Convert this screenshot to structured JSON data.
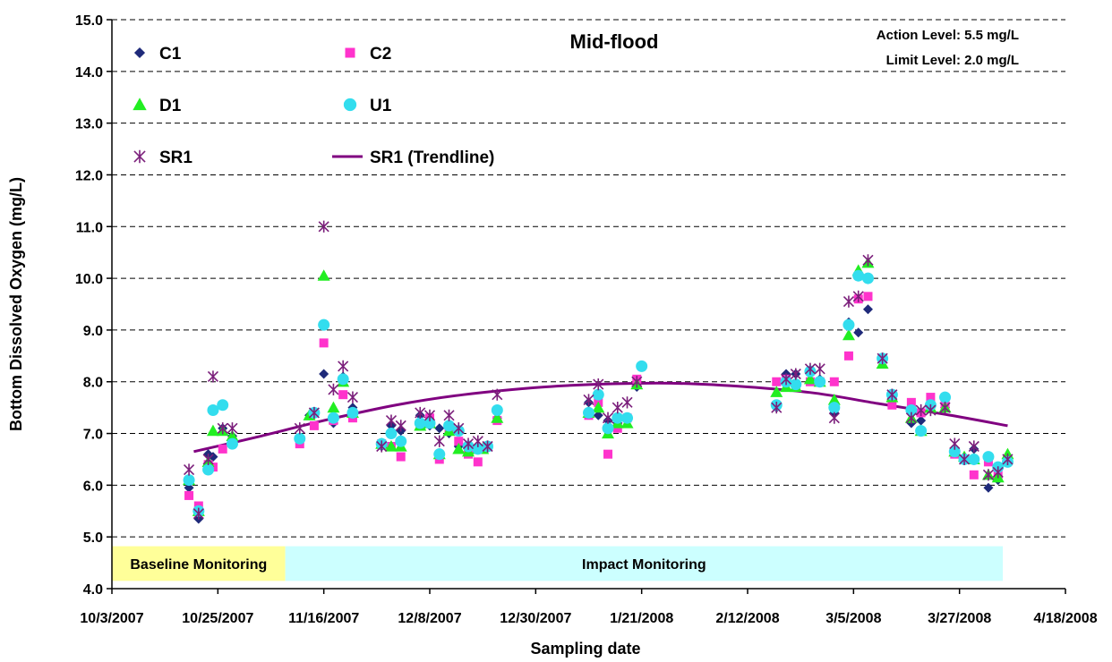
{
  "chart_data": {
    "type": "scatter",
    "title": "Mid-flood",
    "annotations": [
      "Action Level: 5.5 mg/L",
      "Limit Level: 2.0 mg/L"
    ],
    "xlabel": "Sampling date",
    "ylabel": "Bottom Dissolved Oxygen (mg/L)",
    "x_scale": "date",
    "xlim": [
      "2007-10-03",
      "2008-04-18"
    ],
    "ylim": [
      4.0,
      15.0
    ],
    "x_ticks": [
      "10/3/2007",
      "10/25/2007",
      "11/16/2007",
      "12/8/2007",
      "12/30/2007",
      "1/21/2008",
      "2/12/2008",
      "3/5/2008",
      "3/27/2008",
      "4/18/2008"
    ],
    "y_ticks": [
      "4.0",
      "5.0",
      "6.0",
      "7.0",
      "8.0",
      "9.0",
      "10.0",
      "11.0",
      "12.0",
      "13.0",
      "14.0",
      "15.0"
    ],
    "grid": "horizontal dashed",
    "legend": "top-left",
    "periods": [
      {
        "label": "Baseline Monitoring",
        "start": "2007-10-03",
        "end": "2007-11-08",
        "color": "#ffff99"
      },
      {
        "label": "Impact Monitoring",
        "start": "2007-11-08",
        "end": "2008-04-05",
        "color": "#ccffff"
      }
    ],
    "series": [
      {
        "name": "C1",
        "marker": "diamond",
        "color": "#1f2a7a",
        "points": [
          [
            "2007-10-19",
            5.95
          ],
          [
            "2007-10-21",
            5.35
          ],
          [
            "2007-10-23",
            6.6
          ],
          [
            "2007-10-24",
            6.55
          ],
          [
            "2007-10-26",
            7.1
          ],
          [
            "2007-10-28",
            6.95
          ],
          [
            "2007-11-13",
            7.35
          ],
          [
            "2007-11-16",
            8.15
          ],
          [
            "2007-11-18",
            7.2
          ],
          [
            "2007-11-20",
            8.1
          ],
          [
            "2007-11-22",
            7.5
          ],
          [
            "2007-11-28",
            6.75
          ],
          [
            "2007-11-30",
            7.15
          ],
          [
            "2007-12-02",
            7.05
          ],
          [
            "2007-12-06",
            7.35
          ],
          [
            "2007-12-08",
            7.15
          ],
          [
            "2007-12-10",
            7.1
          ],
          [
            "2007-12-12",
            7.0
          ],
          [
            "2007-12-14",
            6.75
          ],
          [
            "2007-12-16",
            6.65
          ],
          [
            "2007-12-19",
            6.7
          ],
          [
            "2007-12-22",
            7.3
          ],
          [
            "2008-01-10",
            7.6
          ],
          [
            "2008-01-12",
            7.35
          ],
          [
            "2008-01-14",
            7.25
          ],
          [
            "2008-01-16",
            7.2
          ],
          [
            "2008-01-18",
            7.25
          ],
          [
            "2008-01-20",
            7.9
          ],
          [
            "2008-02-18",
            7.5
          ],
          [
            "2008-02-20",
            8.15
          ],
          [
            "2008-02-22",
            8.15
          ],
          [
            "2008-02-25",
            8.15
          ],
          [
            "2008-02-27",
            8.05
          ],
          [
            "2008-03-01",
            7.4
          ],
          [
            "2008-03-04",
            9.15
          ],
          [
            "2008-03-06",
            8.95
          ],
          [
            "2008-03-08",
            9.4
          ],
          [
            "2008-03-11",
            8.45
          ],
          [
            "2008-03-13",
            7.7
          ],
          [
            "2008-03-17",
            7.2
          ],
          [
            "2008-03-19",
            7.25
          ],
          [
            "2008-03-21",
            7.5
          ],
          [
            "2008-03-24",
            7.5
          ],
          [
            "2008-03-26",
            6.65
          ],
          [
            "2008-03-28",
            6.55
          ],
          [
            "2008-03-30",
            6.7
          ],
          [
            "2008-04-02",
            5.95
          ],
          [
            "2008-04-04",
            6.1
          ],
          [
            "2008-04-06",
            6.5
          ]
        ]
      },
      {
        "name": "C2",
        "marker": "square",
        "color": "#ff33cc",
        "points": [
          [
            "2007-10-19",
            5.8
          ],
          [
            "2007-10-21",
            5.6
          ],
          [
            "2007-10-23",
            6.4
          ],
          [
            "2007-10-24",
            6.35
          ],
          [
            "2007-10-26",
            6.7
          ],
          [
            "2007-10-28",
            6.85
          ],
          [
            "2007-11-11",
            6.8
          ],
          [
            "2007-11-14",
            7.15
          ],
          [
            "2007-11-16",
            8.75
          ],
          [
            "2007-11-18",
            7.25
          ],
          [
            "2007-11-20",
            7.75
          ],
          [
            "2007-11-22",
            7.3
          ],
          [
            "2007-11-28",
            6.8
          ],
          [
            "2007-11-30",
            6.75
          ],
          [
            "2007-12-02",
            6.55
          ],
          [
            "2007-12-06",
            7.15
          ],
          [
            "2007-12-08",
            7.3
          ],
          [
            "2007-12-10",
            6.5
          ],
          [
            "2007-12-12",
            7.05
          ],
          [
            "2007-12-14",
            6.85
          ],
          [
            "2007-12-16",
            6.6
          ],
          [
            "2007-12-18",
            6.45
          ],
          [
            "2007-12-20",
            6.75
          ],
          [
            "2007-12-22",
            7.25
          ],
          [
            "2008-01-10",
            7.35
          ],
          [
            "2008-01-12",
            7.6
          ],
          [
            "2008-01-14",
            6.6
          ],
          [
            "2008-01-16",
            7.1
          ],
          [
            "2008-01-18",
            7.3
          ],
          [
            "2008-01-20",
            8.05
          ],
          [
            "2008-02-18",
            8.0
          ],
          [
            "2008-02-20",
            8.05
          ],
          [
            "2008-02-22",
            7.9
          ],
          [
            "2008-02-25",
            8.0
          ],
          [
            "2008-02-27",
            8.0
          ],
          [
            "2008-03-01",
            8.0
          ],
          [
            "2008-03-04",
            8.5
          ],
          [
            "2008-03-06",
            9.6
          ],
          [
            "2008-03-08",
            9.65
          ],
          [
            "2008-03-11",
            8.45
          ],
          [
            "2008-03-13",
            7.55
          ],
          [
            "2008-03-17",
            7.6
          ],
          [
            "2008-03-19",
            7.4
          ],
          [
            "2008-03-21",
            7.7
          ],
          [
            "2008-03-24",
            7.55
          ],
          [
            "2008-03-26",
            6.6
          ],
          [
            "2008-03-28",
            6.5
          ],
          [
            "2008-03-30",
            6.2
          ],
          [
            "2008-04-02",
            6.45
          ],
          [
            "2008-04-04",
            6.2
          ],
          [
            "2008-04-06",
            6.5
          ]
        ]
      },
      {
        "name": "D1",
        "marker": "triangle",
        "color": "#22ee22",
        "points": [
          [
            "2007-10-19",
            6.1
          ],
          [
            "2007-10-21",
            5.5
          ],
          [
            "2007-10-23",
            6.45
          ],
          [
            "2007-10-24",
            7.05
          ],
          [
            "2007-10-26",
            7.05
          ],
          [
            "2007-10-28",
            6.95
          ],
          [
            "2007-11-13",
            7.35
          ],
          [
            "2007-11-16",
            10.05
          ],
          [
            "2007-11-18",
            7.5
          ],
          [
            "2007-11-20",
            8.0
          ],
          [
            "2007-11-22",
            7.4
          ],
          [
            "2007-11-28",
            6.8
          ],
          [
            "2007-11-30",
            6.75
          ],
          [
            "2007-12-02",
            6.75
          ],
          [
            "2007-12-06",
            7.15
          ],
          [
            "2007-12-08",
            7.2
          ],
          [
            "2007-12-10",
            6.6
          ],
          [
            "2007-12-12",
            7.05
          ],
          [
            "2007-12-14",
            6.7
          ],
          [
            "2007-12-16",
            6.65
          ],
          [
            "2007-12-18",
            6.7
          ],
          [
            "2007-12-19",
            6.7
          ],
          [
            "2007-12-22",
            7.3
          ],
          [
            "2008-01-10",
            7.4
          ],
          [
            "2008-01-12",
            7.5
          ],
          [
            "2008-01-14",
            7.0
          ],
          [
            "2008-01-16",
            7.2
          ],
          [
            "2008-01-18",
            7.2
          ],
          [
            "2008-01-20",
            7.95
          ],
          [
            "2008-02-18",
            7.8
          ],
          [
            "2008-02-20",
            7.9
          ],
          [
            "2008-02-22",
            7.9
          ],
          [
            "2008-02-25",
            8.05
          ],
          [
            "2008-02-27",
            8.0
          ],
          [
            "2008-03-01",
            7.65
          ],
          [
            "2008-03-04",
            8.9
          ],
          [
            "2008-03-06",
            10.15
          ],
          [
            "2008-03-08",
            10.3
          ],
          [
            "2008-03-11",
            8.35
          ],
          [
            "2008-03-13",
            7.7
          ],
          [
            "2008-03-17",
            7.3
          ],
          [
            "2008-03-19",
            7.05
          ],
          [
            "2008-03-21",
            7.5
          ],
          [
            "2008-03-24",
            7.5
          ],
          [
            "2008-03-26",
            6.65
          ],
          [
            "2008-03-28",
            6.55
          ],
          [
            "2008-03-30",
            6.5
          ],
          [
            "2008-04-02",
            6.2
          ],
          [
            "2008-04-04",
            6.15
          ],
          [
            "2008-04-06",
            6.6
          ]
        ]
      },
      {
        "name": "U1",
        "marker": "circle",
        "color": "#33ddee",
        "points": [
          [
            "2007-10-19",
            6.1
          ],
          [
            "2007-10-21",
            5.5
          ],
          [
            "2007-10-23",
            6.3
          ],
          [
            "2007-10-24",
            7.45
          ],
          [
            "2007-10-26",
            7.55
          ],
          [
            "2007-10-28",
            6.8
          ],
          [
            "2007-11-11",
            6.9
          ],
          [
            "2007-11-14",
            7.4
          ],
          [
            "2007-11-16",
            9.1
          ],
          [
            "2007-11-18",
            7.3
          ],
          [
            "2007-11-20",
            8.05
          ],
          [
            "2007-11-22",
            7.4
          ],
          [
            "2007-11-28",
            6.8
          ],
          [
            "2007-11-30",
            7.0
          ],
          [
            "2007-12-02",
            6.85
          ],
          [
            "2007-12-06",
            7.2
          ],
          [
            "2007-12-08",
            7.2
          ],
          [
            "2007-12-10",
            6.6
          ],
          [
            "2007-12-12",
            7.15
          ],
          [
            "2007-12-14",
            7.05
          ],
          [
            "2007-12-16",
            6.75
          ],
          [
            "2007-12-18",
            6.7
          ],
          [
            "2007-12-20",
            6.75
          ],
          [
            "2007-12-22",
            7.45
          ],
          [
            "2008-01-10",
            7.4
          ],
          [
            "2008-01-12",
            7.75
          ],
          [
            "2008-01-14",
            7.1
          ],
          [
            "2008-01-16",
            7.3
          ],
          [
            "2008-01-18",
            7.3
          ],
          [
            "2008-01-21",
            8.3
          ],
          [
            "2008-02-18",
            7.55
          ],
          [
            "2008-02-20",
            8.0
          ],
          [
            "2008-02-22",
            7.95
          ],
          [
            "2008-02-25",
            8.2
          ],
          [
            "2008-02-27",
            8.0
          ],
          [
            "2008-03-01",
            7.5
          ],
          [
            "2008-03-04",
            9.1
          ],
          [
            "2008-03-06",
            10.05
          ],
          [
            "2008-03-08",
            10.0
          ],
          [
            "2008-03-11",
            8.45
          ],
          [
            "2008-03-13",
            7.75
          ],
          [
            "2008-03-17",
            7.45
          ],
          [
            "2008-03-19",
            7.05
          ],
          [
            "2008-03-21",
            7.55
          ],
          [
            "2008-03-24",
            7.7
          ],
          [
            "2008-03-26",
            6.65
          ],
          [
            "2008-03-28",
            6.5
          ],
          [
            "2008-03-30",
            6.5
          ],
          [
            "2008-04-02",
            6.55
          ],
          [
            "2008-04-04",
            6.35
          ],
          [
            "2008-04-06",
            6.45
          ]
        ]
      },
      {
        "name": "SR1",
        "marker": "asterisk",
        "color": "#7b1f7b",
        "points": [
          [
            "2007-10-19",
            6.3
          ],
          [
            "2007-10-21",
            5.45
          ],
          [
            "2007-10-23",
            6.5
          ],
          [
            "2007-10-24",
            8.1
          ],
          [
            "2007-10-26",
            7.1
          ],
          [
            "2007-10-28",
            7.1
          ],
          [
            "2007-11-11",
            7.1
          ],
          [
            "2007-11-14",
            7.4
          ],
          [
            "2007-11-16",
            11.0
          ],
          [
            "2007-11-18",
            7.85
          ],
          [
            "2007-11-20",
            8.3
          ],
          [
            "2007-11-22",
            7.7
          ],
          [
            "2007-11-28",
            6.75
          ],
          [
            "2007-11-30",
            7.25
          ],
          [
            "2007-12-02",
            7.15
          ],
          [
            "2007-12-06",
            7.4
          ],
          [
            "2007-12-08",
            7.35
          ],
          [
            "2007-12-10",
            6.85
          ],
          [
            "2007-12-12",
            7.35
          ],
          [
            "2007-12-14",
            7.1
          ],
          [
            "2007-12-16",
            6.8
          ],
          [
            "2007-12-18",
            6.85
          ],
          [
            "2007-12-20",
            6.75
          ],
          [
            "2007-12-22",
            7.75
          ],
          [
            "2008-01-10",
            7.65
          ],
          [
            "2008-01-12",
            7.95
          ],
          [
            "2008-01-14",
            7.3
          ],
          [
            "2008-01-16",
            7.5
          ],
          [
            "2008-01-18",
            7.6
          ],
          [
            "2008-01-20",
            8.0
          ],
          [
            "2008-02-18",
            7.5
          ],
          [
            "2008-02-20",
            8.05
          ],
          [
            "2008-02-22",
            8.15
          ],
          [
            "2008-02-25",
            8.25
          ],
          [
            "2008-02-27",
            8.25
          ],
          [
            "2008-03-01",
            7.3
          ],
          [
            "2008-03-04",
            9.55
          ],
          [
            "2008-03-06",
            9.65
          ],
          [
            "2008-03-08",
            10.35
          ],
          [
            "2008-03-11",
            8.45
          ],
          [
            "2008-03-13",
            7.75
          ],
          [
            "2008-03-17",
            7.3
          ],
          [
            "2008-03-19",
            7.45
          ],
          [
            "2008-03-21",
            7.45
          ],
          [
            "2008-03-24",
            7.5
          ],
          [
            "2008-03-26",
            6.8
          ],
          [
            "2008-03-28",
            6.5
          ],
          [
            "2008-03-30",
            6.75
          ],
          [
            "2008-04-02",
            6.2
          ],
          [
            "2008-04-04",
            6.25
          ],
          [
            "2008-04-06",
            6.5
          ]
        ]
      },
      {
        "name": "SR1 (Trendline)",
        "type": "line",
        "color": "#800080",
        "points": [
          [
            "2007-10-20",
            6.65
          ],
          [
            "2007-11-03",
            6.95
          ],
          [
            "2007-11-16",
            7.25
          ],
          [
            "2007-12-01",
            7.55
          ],
          [
            "2007-12-15",
            7.75
          ],
          [
            "2008-01-01",
            7.9
          ],
          [
            "2008-01-15",
            7.96
          ],
          [
            "2008-01-28",
            7.97
          ],
          [
            "2008-02-12",
            7.9
          ],
          [
            "2008-02-26",
            7.78
          ],
          [
            "2008-03-10",
            7.58
          ],
          [
            "2008-03-24",
            7.37
          ],
          [
            "2008-04-06",
            7.15
          ]
        ]
      }
    ]
  }
}
